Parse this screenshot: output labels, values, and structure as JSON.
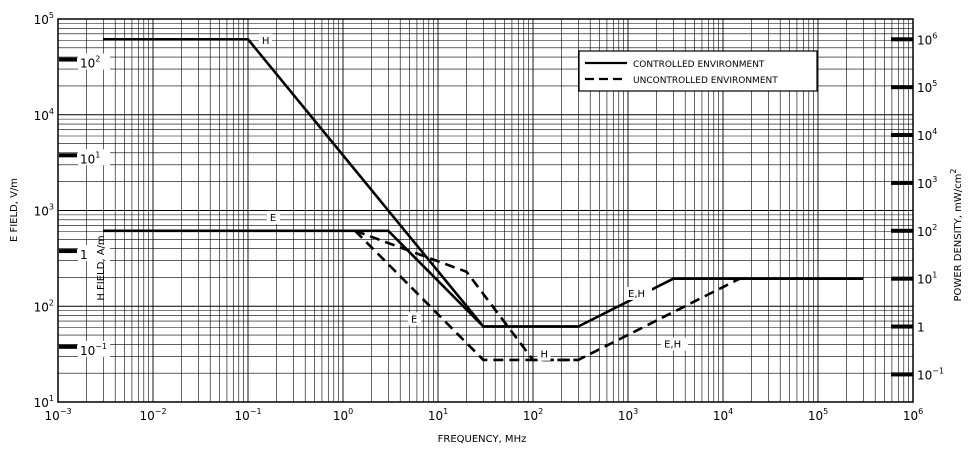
{
  "chart_data": {
    "type": "line",
    "title": "",
    "xlabel": "FREQUENCY, MHz",
    "ylabel_left": "E FIELD, V/m",
    "ylabel_left_inner": "H FIELD, A/m",
    "ylabel_right": "POWER DENSITY, mW/cm",
    "ylabel_right_sup": "2",
    "xscale": "log",
    "yscale": "log",
    "xlim": [
      0.001,
      1000000
    ],
    "ylim": [
      10,
      100000
    ],
    "grid": true,
    "legend_position": "top-right",
    "x_ticks": [
      {
        "base": "10",
        "exp": "−3",
        "value": 0.001
      },
      {
        "base": "10",
        "exp": "−2",
        "value": 0.01
      },
      {
        "base": "10",
        "exp": "−1",
        "value": 0.1
      },
      {
        "base": "10",
        "exp": "0",
        "value": 1
      },
      {
        "base": "10",
        "exp": "1",
        "value": 10
      },
      {
        "base": "10",
        "exp": "2",
        "value": 100
      },
      {
        "base": "10",
        "exp": "3",
        "value": 1000
      },
      {
        "base": "10",
        "exp": "4",
        "value": 10000
      },
      {
        "base": "10",
        "exp": "5",
        "value": 100000
      },
      {
        "base": "10",
        "exp": "6",
        "value": 1000000
      }
    ],
    "y_left_ticks": [
      {
        "base": "10",
        "exp": "1",
        "value": 10
      },
      {
        "base": "10",
        "exp": "2",
        "value": 100
      },
      {
        "base": "10",
        "exp": "3",
        "value": 1000
      },
      {
        "base": "10",
        "exp": "4",
        "value": 10000
      },
      {
        "base": "10",
        "exp": "5",
        "value": 100000
      }
    ],
    "y_h_ticks": [
      {
        "base": "10",
        "exp": "−1",
        "value": 0.1
      },
      {
        "base": "1",
        "exp": "",
        "value": 1
      },
      {
        "base": "10",
        "exp": "1",
        "value": 10
      },
      {
        "base": "10",
        "exp": "2",
        "value": 100
      }
    ],
    "y_right_ticks": [
      {
        "base": "10",
        "exp": "−1",
        "value": 0.1
      },
      {
        "base": "1",
        "exp": "",
        "value": 1
      },
      {
        "base": "10",
        "exp": "1",
        "value": 10
      },
      {
        "base": "10",
        "exp": "2",
        "value": 100
      },
      {
        "base": "10",
        "exp": "3",
        "value": 1000
      },
      {
        "base": "10",
        "exp": "4",
        "value": 10000
      },
      {
        "base": "10",
        "exp": "5",
        "value": 100000
      },
      {
        "base": "10",
        "exp": "6",
        "value": 1000000
      }
    ],
    "legend": [
      {
        "label": "CONTROLLED ENVIRONMENT",
        "style": "solid"
      },
      {
        "label": "UNCONTROLLED ENVIRONMENT",
        "style": "dashed"
      }
    ],
    "series": [
      {
        "label": "H",
        "style": "solid",
        "points": [
          [
            0.003,
            61400
          ],
          [
            0.1,
            61400
          ],
          [
            30,
            61.4
          ],
          [
            100,
            61.4
          ],
          [
            300,
            61.4
          ],
          [
            3000,
            194
          ],
          [
            300000,
            194
          ]
        ]
      },
      {
        "label": "E",
        "style": "solid",
        "points": [
          [
            0.003,
            614
          ],
          [
            3,
            614
          ],
          [
            30,
            61.4
          ],
          [
            300,
            61.4
          ]
        ]
      },
      {
        "label": "H",
        "style": "dashed",
        "points": [
          [
            1.34,
            614
          ],
          [
            20,
            229
          ],
          [
            100,
            27.5
          ],
          [
            300,
            27.5
          ],
          [
            15000,
            194
          ]
        ]
      },
      {
        "label": "E",
        "style": "dashed",
        "points": [
          [
            1.34,
            614
          ],
          [
            30,
            27.5
          ],
          [
            300,
            27.5
          ]
        ]
      }
    ],
    "curve_labels": [
      {
        "text": "H",
        "x": 0.14,
        "y": 55000
      },
      {
        "text": "E",
        "x": 0.17,
        "y": 780
      },
      {
        "text": "E",
        "x": 5.2,
        "y": 68
      },
      {
        "text": "H",
        "x": 120,
        "y": 29
      },
      {
        "text": "E,H",
        "x": 1000,
        "y": 125
      },
      {
        "text": "E,H",
        "x": 2400,
        "y": 37
      }
    ]
  }
}
